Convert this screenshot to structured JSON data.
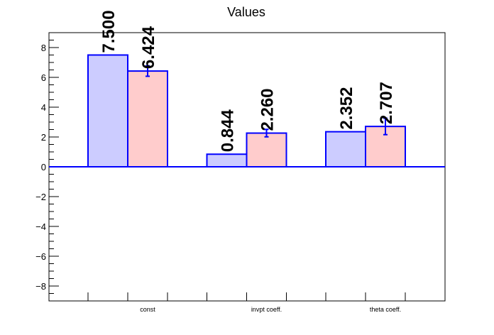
{
  "chart_data": {
    "type": "bar",
    "title": "Values",
    "categories": [
      "const",
      "invpt coeff.",
      "theta coeff."
    ],
    "series": [
      {
        "values": [
          7.5,
          0.844,
          2.352
        ],
        "value_labels": [
          "7.500",
          "0.844",
          "2.352"
        ],
        "fill": "#ccccff",
        "stroke": "#0000ff"
      },
      {
        "values": [
          6.424,
          2.26,
          2.707
        ],
        "value_labels": [
          "6.424",
          "2.260",
          "2.707"
        ],
        "errors": [
          0.35,
          0.25,
          0.55
        ],
        "fill": "#ffcccc",
        "stroke": "#0000ff"
      }
    ],
    "ylim": [
      -9,
      9
    ],
    "yticks": [
      -8,
      -6,
      -4,
      -2,
      0,
      2,
      4,
      6,
      8
    ],
    "ytick_labels": [
      "−8",
      "−6",
      "−4",
      "−2",
      "0",
      "2",
      "4",
      "6",
      "8"
    ],
    "xlabel": "",
    "ylabel": "",
    "grid": false,
    "legend": "none",
    "baseline_color": "#0000ff"
  }
}
